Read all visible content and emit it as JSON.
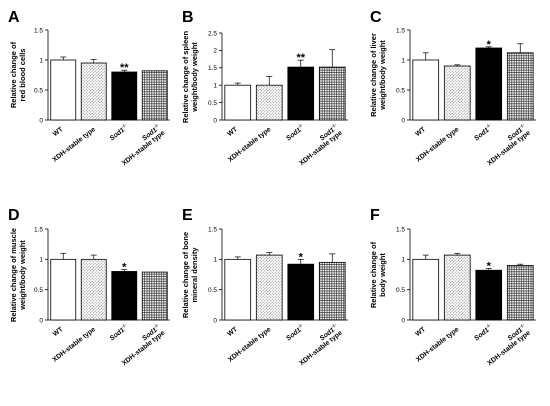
{
  "colors": {
    "WT": "#ffffff",
    "XDH-stable type": "dotted-gray",
    "Sod1-/-": "#000000",
    "Sod1-/- XDH-stable type": "grid-hatch"
  },
  "chart_data": [
    {
      "panel": "A",
      "type": "bar",
      "categories": [
        "WT",
        "XDH-stable type",
        "Sod1-/-",
        "Sod1-/- XDH-stable type"
      ],
      "values": [
        1.0,
        0.95,
        0.8,
        0.82
      ],
      "errors": [
        0.05,
        0.06,
        0.03,
        0.0
      ],
      "significance": [
        "",
        "",
        "**",
        ""
      ],
      "ylabel": "Relative change of red blood cells",
      "ylim": [
        0,
        1.5
      ],
      "yticks": [
        0,
        0.5,
        1,
        1.5
      ]
    },
    {
      "panel": "B",
      "type": "bar",
      "categories": [
        "WT",
        "XDH-stable type",
        "Sod1-/-",
        "Sod1-/- XDH-stable type"
      ],
      "values": [
        1.0,
        1.0,
        1.52,
        1.52
      ],
      "errors": [
        0.06,
        0.25,
        0.2,
        0.5
      ],
      "significance": [
        "",
        "",
        "**",
        ""
      ],
      "ylabel": "Relative change of spleen weight/body weight",
      "ylim": [
        0,
        2.5
      ],
      "yticks": [
        0,
        0.5,
        1,
        1.5,
        2,
        2.5
      ]
    },
    {
      "panel": "C",
      "type": "bar",
      "categories": [
        "WT",
        "XDH-stable type",
        "Sod1-/-",
        "Sod1-/- XDH-stable type"
      ],
      "values": [
        1.0,
        0.9,
        1.2,
        1.12
      ],
      "errors": [
        0.12,
        0.02,
        0.02,
        0.15
      ],
      "significance": [
        "",
        "",
        "*",
        ""
      ],
      "ylabel": "Relative change of liver weight/body weight",
      "ylim": [
        0,
        1.5
      ],
      "yticks": [
        0,
        0.5,
        1,
        1.5
      ]
    },
    {
      "panel": "D",
      "type": "bar",
      "categories": [
        "WT",
        "XDH-stable type",
        "Sod1-/-",
        "Sod1-/- XDH-stable type"
      ],
      "values": [
        1.0,
        1.0,
        0.8,
        0.79
      ],
      "errors": [
        0.1,
        0.07,
        0.03,
        0.0
      ],
      "significance": [
        "",
        "",
        "*",
        ""
      ],
      "ylabel": "Relative change of muscle weight/body weight",
      "ylim": [
        0,
        1.5
      ],
      "yticks": [
        0,
        0.5,
        1,
        1.5
      ]
    },
    {
      "panel": "E",
      "type": "bar",
      "categories": [
        "WT",
        "XDH-stable type",
        "Sod1-/-",
        "Sod1-/- XDH-stable type"
      ],
      "values": [
        1.0,
        1.07,
        0.92,
        0.95
      ],
      "errors": [
        0.04,
        0.04,
        0.08,
        0.14
      ],
      "significance": [
        "",
        "",
        "*",
        ""
      ],
      "ylabel": "Relative change of bone mineral density",
      "ylim": [
        0,
        1.5
      ],
      "yticks": [
        0,
        0.5,
        1,
        1.5
      ]
    },
    {
      "panel": "F",
      "type": "bar",
      "categories": [
        "WT",
        "XDH-stable type",
        "Sod1-/-",
        "Sod1-/- XDH-stable type"
      ],
      "values": [
        1.0,
        1.07,
        0.82,
        0.9
      ],
      "errors": [
        0.07,
        0.03,
        0.03,
        0.02
      ],
      "significance": [
        "",
        "",
        "*",
        ""
      ],
      "ylabel": "Relative change of body weight",
      "ylim": [
        0,
        1.5
      ],
      "yticks": [
        0,
        0.5,
        1,
        1.5
      ]
    }
  ]
}
